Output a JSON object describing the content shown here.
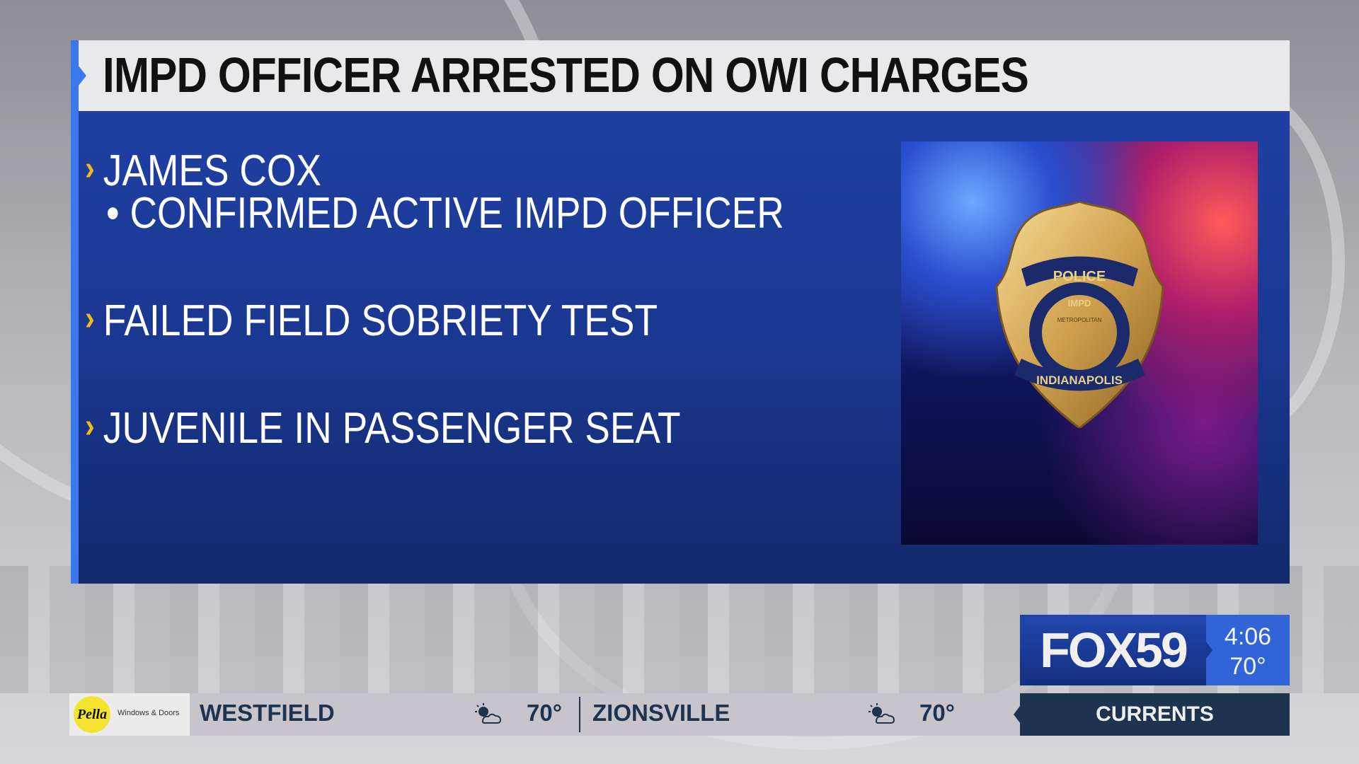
{
  "headline": "IMPD OFFICER ARRESTED ON OWI CHARGES",
  "bullets": [
    {
      "text": "JAMES COX",
      "sub": "CONFIRMED ACTIVE IMPD OFFICER"
    },
    {
      "text": "FAILED FIELD SOBRIETY TEST"
    },
    {
      "text": "JUVENILE IN PASSENGER SEAT"
    }
  ],
  "bullet_marker": "›",
  "sub_marker": "•",
  "badge": {
    "top": "POLICE",
    "middle": "IMPD",
    "ring": "METROPOLITAN",
    "bottom": "INDIANAPOLIS"
  },
  "bug": {
    "station": "FOX59",
    "time": "4:06",
    "temp": "70°"
  },
  "ticker": {
    "sponsor": {
      "logo": "Pella",
      "tagline": "Windows & Doors"
    },
    "items": [
      {
        "city": "WESTFIELD",
        "icon": "partly-sunny-icon",
        "temp": "70°"
      },
      {
        "city": "ZIONSVILLE",
        "icon": "partly-sunny-icon",
        "temp": "70°"
      }
    ],
    "section": "CURRENTS"
  },
  "colors": {
    "accent": "#3a78f0",
    "panel": "#1f40a3",
    "chevron": "#f2b81c",
    "ticker_text": "#1e3350"
  }
}
